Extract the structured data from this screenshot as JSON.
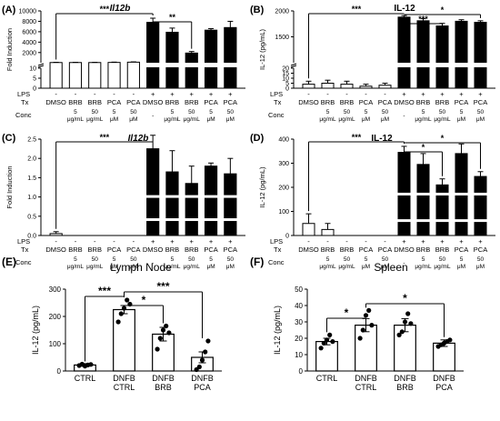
{
  "chart_data": [
    {
      "id": "A",
      "panel_label": "(A)",
      "title": "Il12b",
      "title_italic": true,
      "type": "bar",
      "ylabel": "Fold Induction",
      "lps": [
        "-",
        "-",
        "-",
        "-",
        "-",
        "+",
        "+",
        "+",
        "+",
        "+"
      ],
      "tx": [
        "DMSO",
        "BRB",
        "BRB",
        "PCA",
        "PCA",
        "DMSO",
        "BRB",
        "BRB",
        "PCA",
        "PCA"
      ],
      "conc": [
        "",
        "5\nμg/mL",
        "50\nμg/mL",
        "5\nμM",
        "50\nμM",
        "-",
        "5\nμg/mL",
        "50\nμg/mL",
        "5\nμM",
        "50\nμM"
      ],
      "values": [
        80,
        80,
        80,
        100,
        150,
        7800,
        5900,
        1900,
        6300,
        6800
      ],
      "errors": [
        50,
        40,
        40,
        60,
        60,
        800,
        800,
        300,
        300,
        1200
      ],
      "yaxis_break": [
        10,
        40
      ],
      "yticks_top": [
        "2000",
        "4000",
        "6000",
        "8000",
        "10000"
      ],
      "yticks_bottom": [
        "0",
        "5",
        "10"
      ],
      "significance": [
        {
          "from": 0,
          "to": 5,
          "label": "***"
        },
        {
          "from": 5,
          "to": 7,
          "label": "**"
        }
      ]
    },
    {
      "id": "B",
      "panel_label": "(B)",
      "title": "IL-12",
      "title_italic": false,
      "type": "bar",
      "ylabel": "IL-12 (pg/mL)",
      "lps": [
        "-",
        "-",
        "-",
        "-",
        "-",
        "+",
        "+",
        "+",
        "+",
        "+"
      ],
      "tx": [
        "DMSO",
        "BRB",
        "BRB",
        "PCA",
        "PCA",
        "DMSO",
        "BRB",
        "BRB",
        "PCA",
        "PCA"
      ],
      "conc": [
        "",
        "5\nμg/mL",
        "50\nμg/mL",
        "5\nμM",
        "50\nμM",
        "-",
        "5\nμg/mL",
        "50\nμg/mL",
        "5\nμM",
        "50\nμM"
      ],
      "values": [
        4,
        5,
        4,
        2,
        3,
        1880,
        1810,
        1710,
        1800,
        1780
      ],
      "errors": [
        3,
        3,
        3,
        2,
        2,
        30,
        40,
        50,
        30,
        30
      ],
      "yaxis_break": [
        20,
        1000
      ],
      "yticks_top": [
        "1500",
        "2000"
      ],
      "yticks_bottom": [
        "0",
        "5",
        "10",
        "15",
        "20"
      ],
      "significance": [
        {
          "from": 0,
          "to": 5,
          "label": "***"
        },
        {
          "from": 5,
          "to": 7,
          "label": "***"
        },
        {
          "from": 5,
          "to": 9,
          "label": "*"
        }
      ]
    },
    {
      "id": "C",
      "panel_label": "(C)",
      "title": "Il12b",
      "title_italic": true,
      "type": "bar",
      "ylabel": "Fold Induction",
      "lps": [
        "-",
        "-",
        "-",
        "-",
        "-",
        "+",
        "+",
        "+",
        "+",
        "+"
      ],
      "tx": [
        "DMSO",
        "BRB",
        "BRB",
        "PCA",
        "PCA",
        "DMSO",
        "BRB",
        "BRB",
        "PCA",
        "PCA"
      ],
      "conc": [
        "",
        "5\nμg/mL",
        "50\nμg/mL",
        "5\nμM",
        "50\nμM",
        "-",
        "5\nμg/mL",
        "50\nμg/mL",
        "5\nμM",
        "50\nμM"
      ],
      "values": [
        0.05,
        0,
        0,
        0,
        0,
        2.25,
        1.65,
        1.35,
        1.8,
        1.6
      ],
      "errors": [
        0.05,
        0,
        0,
        0,
        0,
        0.35,
        0.55,
        0.45,
        0.08,
        0.4
      ],
      "ylim": [
        0,
        2.5
      ],
      "yticks": [
        "0.0",
        "0.5",
        "1.0",
        "1.5",
        "2.0",
        "2.5"
      ],
      "significance": [
        {
          "from": 0,
          "to": 5,
          "label": "***"
        }
      ]
    },
    {
      "id": "D",
      "panel_label": "(D)",
      "title": "IL-12",
      "title_italic": false,
      "type": "bar",
      "ylabel": "IL-12 (pg/mL)",
      "lps": [
        "-",
        "-",
        "-",
        "-",
        "-",
        "+",
        "+",
        "+",
        "+",
        "+"
      ],
      "tx": [
        "DMSO",
        "BRB",
        "BRB",
        "PCA",
        "PCA",
        "DMSO",
        "BRB",
        "BRB",
        "PCA",
        "PCA"
      ],
      "conc": [
        "",
        "5\nμg/mL",
        "50\nμg/mL",
        "5\nμM",
        "50\nμM",
        "-",
        "5\nμg/mL",
        "50\nμg/mL",
        "5\nμM",
        "50\nμM"
      ],
      "values": [
        50,
        25,
        0,
        0,
        0,
        345,
        295,
        210,
        340,
        245
      ],
      "errors": [
        40,
        25,
        0,
        0,
        0,
        25,
        45,
        25,
        40,
        20
      ],
      "ylim": [
        0,
        400
      ],
      "yticks": [
        "0",
        "100",
        "200",
        "300",
        "400"
      ],
      "significance": [
        {
          "from": 0,
          "to": 5,
          "label": "***"
        },
        {
          "from": 5,
          "to": 7,
          "label": "*"
        },
        {
          "from": 5,
          "to": 9,
          "label": "*"
        }
      ]
    },
    {
      "id": "E",
      "panel_label": "(E)",
      "title": "Lymph Node",
      "type": "bar",
      "ylabel": "IL-12 (pg/mL)",
      "categories": [
        "CTRL",
        "DNFB\nCTRL",
        "DNFB\nBRB",
        "DNFB\nPCA"
      ],
      "values": [
        22,
        225,
        135,
        50
      ],
      "errors": [
        5,
        15,
        25,
        20
      ],
      "points": [
        [
          20,
          25,
          18,
          22,
          24
        ],
        [
          180,
          210,
          230,
          260,
          245
        ],
        [
          80,
          120,
          150,
          165,
          140
        ],
        [
          5,
          15,
          40,
          70,
          110
        ]
      ],
      "ylim": [
        0,
        300
      ],
      "yticks": [
        "0",
        "100",
        "200",
        "300"
      ],
      "significance": [
        {
          "from": 0,
          "to": 1,
          "label": "***"
        },
        {
          "from": 1,
          "to": 2,
          "label": "*"
        },
        {
          "from": 1,
          "to": 3,
          "label": "***"
        }
      ]
    },
    {
      "id": "F",
      "panel_label": "(F)",
      "title": "Spleen",
      "type": "bar",
      "ylabel": "IL-12 (pg/mL)",
      "categories": [
        "CTRL",
        "DNFB\nCTRL",
        "DNFB\nBRB",
        "DNFB\nPCA"
      ],
      "values": [
        18,
        28,
        28,
        17
      ],
      "errors": [
        2,
        4,
        4,
        2
      ],
      "points": [
        [
          14,
          17,
          19,
          22,
          18
        ],
        [
          20,
          25,
          34,
          37,
          28
        ],
        [
          22,
          24,
          30,
          35,
          29
        ],
        [
          15,
          16,
          17,
          18,
          19
        ]
      ],
      "ylim": [
        0,
        50
      ],
      "yticks": [
        "0",
        "10",
        "20",
        "30",
        "40",
        "50"
      ],
      "significance": [
        {
          "from": 0,
          "to": 1,
          "label": "*"
        },
        {
          "from": 1,
          "to": 3,
          "label": "*"
        }
      ]
    }
  ],
  "row_labels": {
    "lps": "LPS",
    "tx": "Tx",
    "conc": "Conc"
  }
}
